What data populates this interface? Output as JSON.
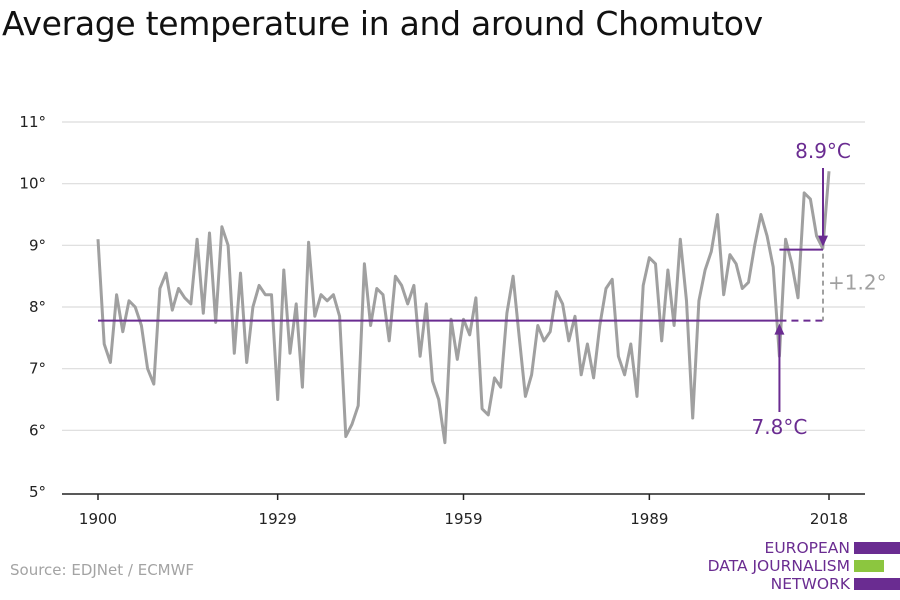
{
  "title": "Average temperature in and around Chomutov",
  "source": "Source: EDJNet / ECMWF",
  "logo": {
    "lines": [
      "EUROPEAN",
      "DATA JOURNALISM",
      "NETWORK"
    ],
    "colors": [
      "#6a2c91",
      "#8cc63f",
      "#6a2c91"
    ]
  },
  "colors": {
    "series": "#a0a0a0",
    "accent": "#6a2c91",
    "grid": "#dcdcdc",
    "annotation_gray": "#a0a0a0"
  },
  "chart_data": {
    "type": "line",
    "title": "Average temperature in and around Chomutov",
    "xlabel": "",
    "ylabel": "",
    "xlim": [
      1900,
      2018
    ],
    "ylim": [
      5,
      11
    ],
    "grid": true,
    "x_ticks": [
      1900,
      1929,
      1959,
      1989,
      2018
    ],
    "y_ticks": [
      5,
      6,
      7,
      8,
      9,
      10,
      11
    ],
    "y_tick_labels": [
      "5°",
      "6°",
      "7°",
      "8°",
      "9°",
      "10°",
      "11°"
    ],
    "series": [
      {
        "x": [
          1900,
          1901,
          1902,
          1903,
          1904,
          1905,
          1906,
          1907,
          1908,
          1909,
          1910,
          1911,
          1912,
          1913,
          1914,
          1915,
          1916,
          1917,
          1918,
          1919,
          1920,
          1921,
          1922,
          1923,
          1924,
          1925,
          1926,
          1927,
          1928,
          1929,
          1930,
          1931,
          1932,
          1933,
          1934,
          1935,
          1936,
          1937,
          1938,
          1939,
          1940,
          1941,
          1942,
          1943,
          1944,
          1945,
          1946,
          1947,
          1948,
          1949,
          1950,
          1951,
          1952,
          1953,
          1954,
          1955,
          1956,
          1957,
          1958,
          1959,
          1960,
          1961,
          1962,
          1963,
          1964,
          1965,
          1966,
          1967,
          1968,
          1969,
          1970,
          1971,
          1972,
          1973,
          1974,
          1975,
          1976,
          1977,
          1978,
          1979,
          1980,
          1981,
          1982,
          1983,
          1984,
          1985,
          1986,
          1987,
          1988,
          1989,
          1990,
          1991,
          1992,
          1993,
          1994,
          1995,
          1996,
          1997,
          1998,
          1999,
          2000,
          2001,
          2002,
          2003,
          2004,
          2005,
          2006,
          2007,
          2008,
          2009,
          2010,
          2011,
          2012,
          2013,
          2014,
          2015,
          2016,
          2017,
          2018
        ],
        "values": [
          9.1,
          7.4,
          7.1,
          8.2,
          7.6,
          8.1,
          8.0,
          7.7,
          7.0,
          6.75,
          8.3,
          8.55,
          7.95,
          8.3,
          8.15,
          8.05,
          9.1,
          7.9,
          9.2,
          7.75,
          9.3,
          9.0,
          7.25,
          8.55,
          7.1,
          8.0,
          8.35,
          8.2,
          8.2,
          6.5,
          8.6,
          7.25,
          8.05,
          6.7,
          9.05,
          7.85,
          8.2,
          8.1,
          8.2,
          7.85,
          5.9,
          6.1,
          6.4,
          8.7,
          7.7,
          8.3,
          8.2,
          7.45,
          8.5,
          8.35,
          8.05,
          8.35,
          7.2,
          8.05,
          6.8,
          6.5,
          5.8,
          7.8,
          7.15,
          7.8,
          7.55,
          8.15,
          6.35,
          6.25,
          6.85,
          6.7,
          7.9,
          8.5,
          7.5,
          6.55,
          6.9,
          7.7,
          7.45,
          7.6,
          8.25,
          8.05,
          7.45,
          7.85,
          6.9,
          7.4,
          6.85,
          7.7,
          8.3,
          8.45,
          7.2,
          6.9,
          7.4,
          6.55,
          8.35,
          8.8,
          8.7,
          7.45,
          8.6,
          7.7,
          9.1,
          8.1,
          6.2,
          8.1,
          8.6,
          8.9,
          9.5,
          8.2,
          8.85,
          8.7,
          8.3,
          8.4,
          9.0,
          9.5,
          9.15,
          8.65,
          7.2,
          9.1,
          8.7,
          8.15,
          9.85,
          9.75,
          9.15,
          8.95,
          10.2
        ]
      }
    ],
    "reference_lines": [
      {
        "label": "7.8°C",
        "value": 7.78,
        "x_start": 1900,
        "x_end": 2010,
        "dashed_from": 2010,
        "dashed_to": 2018
      },
      {
        "label": "8.9°C",
        "value": 8.93,
        "x_start": 2010,
        "x_end": 2018
      }
    ],
    "difference_label": "+1.2°"
  }
}
